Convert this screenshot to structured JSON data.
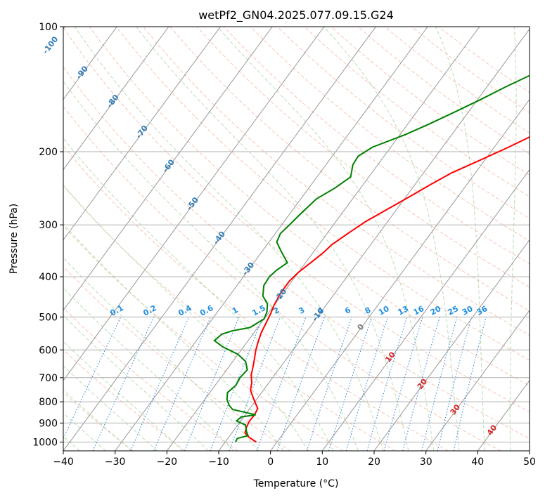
{
  "chart_data": {
    "type": "line",
    "title": "wetPf2_GN04.2025.077.09.15.G24",
    "xlabel": "Temperature (°C)",
    "ylabel": "Pressure (hPa)",
    "xlim": [
      -40,
      50
    ],
    "ylim": [
      1050,
      100
    ],
    "y_scale": "log",
    "grid": true,
    "x_ticks": [
      -40,
      -30,
      -20,
      -10,
      0,
      10,
      20,
      30,
      40,
      50
    ],
    "y_ticks": [
      100,
      200,
      300,
      400,
      500,
      600,
      700,
      800,
      900,
      1000
    ],
    "isotherm_labels": [
      -100,
      -90,
      -80,
      -70,
      -60,
      -50,
      -40,
      -30,
      -20,
      -10,
      0,
      10,
      20,
      30,
      40
    ],
    "mixing_ratio_labels": [
      "0.1",
      "0.2",
      "0.4",
      "0.6",
      "1",
      "1.5",
      "2",
      "3",
      "4",
      "6",
      "8",
      "10",
      "13",
      "16",
      "20",
      "25",
      "30",
      "36"
    ],
    "series": [
      {
        "color": "#ff0000",
        "points": [
          [
            -4.0,
            1000
          ],
          [
            -6.0,
            975
          ],
          [
            -7.5,
            950
          ],
          [
            -8.0,
            920
          ],
          [
            -8.3,
            890
          ],
          [
            -8.2,
            860
          ],
          [
            -8.5,
            830
          ],
          [
            -9.5,
            810
          ],
          [
            -11.0,
            780
          ],
          [
            -12.5,
            750
          ],
          [
            -13.3,
            720
          ],
          [
            -14.5,
            690
          ],
          [
            -15.3,
            660
          ],
          [
            -16.2,
            630
          ],
          [
            -17.2,
            600
          ],
          [
            -18.0,
            570
          ],
          [
            -18.6,
            545
          ],
          [
            -19.0,
            520
          ],
          [
            -19.5,
            490
          ],
          [
            -20.0,
            470
          ],
          [
            -20.5,
            440
          ],
          [
            -20.5,
            410
          ],
          [
            -20.0,
            390
          ],
          [
            -19.0,
            370
          ],
          [
            -18.0,
            350
          ],
          [
            -17.5,
            335
          ],
          [
            -16.0,
            315
          ],
          [
            -14.3,
            295
          ],
          [
            -11.8,
            275
          ],
          [
            -9.5,
            258
          ],
          [
            -7.0,
            240
          ],
          [
            -4.6,
            225
          ],
          [
            -1.0,
            210
          ],
          [
            2.5,
            196
          ],
          [
            5.2,
            185
          ],
          [
            6.5,
            178
          ],
          [
            7.2,
            170
          ],
          [
            8.0,
            160
          ],
          [
            9.8,
            150
          ],
          [
            12.2,
            140
          ],
          [
            14.2,
            130
          ],
          [
            16.4,
            120
          ],
          [
            19.6,
            110
          ],
          [
            22.0,
            104
          ],
          [
            23.5,
            100
          ]
        ]
      },
      {
        "color": "#008000",
        "points": [
          [
            -8.0,
            1000
          ],
          [
            -8.2,
            980
          ],
          [
            -6.5,
            965
          ],
          [
            -7.5,
            940
          ],
          [
            -8.5,
            910
          ],
          [
            -10.8,
            890
          ],
          [
            -10.5,
            870
          ],
          [
            -8.0,
            860
          ],
          [
            -10.0,
            850
          ],
          [
            -13.2,
            835
          ],
          [
            -14.5,
            815
          ],
          [
            -15.7,
            790
          ],
          [
            -16.6,
            760
          ],
          [
            -16.0,
            730
          ],
          [
            -16.3,
            700
          ],
          [
            -16.0,
            670
          ],
          [
            -17.5,
            640
          ],
          [
            -20.0,
            615
          ],
          [
            -24.0,
            590
          ],
          [
            -26.5,
            570
          ],
          [
            -26.0,
            550
          ],
          [
            -24.5,
            540
          ],
          [
            -21.5,
            530
          ],
          [
            -20.0,
            505
          ],
          [
            -20.5,
            485
          ],
          [
            -21.5,
            465
          ],
          [
            -23.5,
            445
          ],
          [
            -24.8,
            420
          ],
          [
            -25.0,
            400
          ],
          [
            -24.5,
            385
          ],
          [
            -23.5,
            370
          ],
          [
            -26.0,
            350
          ],
          [
            -28.5,
            330
          ],
          [
            -29.0,
            315
          ],
          [
            -28.5,
            300
          ],
          [
            -28.0,
            285
          ],
          [
            -27.0,
            260
          ],
          [
            -25.0,
            245
          ],
          [
            -23.5,
            230
          ],
          [
            -24.8,
            215
          ],
          [
            -25.0,
            205
          ],
          [
            -23.5,
            195
          ],
          [
            -19.0,
            182
          ],
          [
            -16.0,
            172
          ],
          [
            -12.5,
            160
          ],
          [
            -9.5,
            150
          ],
          [
            -6.5,
            140
          ],
          [
            -3.0,
            130
          ],
          [
            0.0,
            120
          ],
          [
            2.5,
            110
          ],
          [
            4.5,
            104
          ],
          [
            6.0,
            100
          ]
        ]
      }
    ]
  }
}
